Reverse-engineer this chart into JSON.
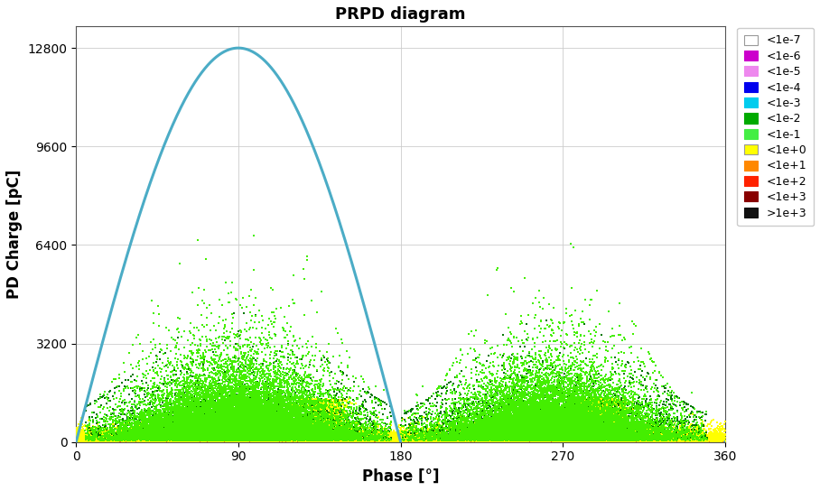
{
  "title": "PRPD diagram",
  "xlabel": "Phase [°]",
  "ylabel": "PD Charge [pC]",
  "xlim": [
    0,
    360
  ],
  "ylim": [
    0,
    13500
  ],
  "yticks": [
    0,
    3200,
    6400,
    9600,
    12800
  ],
  "xticks": [
    0,
    90,
    180,
    270,
    360
  ],
  "sine_color": "#4bacc6",
  "sine_amplitude": 12800,
  "background_color": "#ffffff",
  "plot_bg_color": "#ffffff",
  "legend_entries": [
    {
      "label": "<1e-7",
      "color": "#ffffff",
      "edgecolor": "#999999"
    },
    {
      "label": "<1e-6",
      "color": "#cc00cc",
      "edgecolor": "#cc00cc"
    },
    {
      "label": "<1e-5",
      "color": "#ee88ee",
      "edgecolor": "#ee88ee"
    },
    {
      "label": "<1e-4",
      "color": "#0000ee",
      "edgecolor": "#0000ee"
    },
    {
      "label": "<1e-3",
      "color": "#00ccee",
      "edgecolor": "#00ccee"
    },
    {
      "label": "<1e-2",
      "color": "#00aa00",
      "edgecolor": "#00aa00"
    },
    {
      "label": "<1e-1",
      "color": "#44ee44",
      "edgecolor": "#44ee44"
    },
    {
      "label": "<1e+0",
      "color": "#ffff00",
      "edgecolor": "#999999"
    },
    {
      "label": "<1e+1",
      "color": "#ff8800",
      "edgecolor": "#ff8800"
    },
    {
      "label": "<1e+2",
      "color": "#ff2200",
      "edgecolor": "#ff2200"
    },
    {
      "label": "<1e+3",
      "color": "#880000",
      "edgecolor": "#880000"
    },
    {
      "label": ">1e+3",
      "color": "#111111",
      "edgecolor": "#111111"
    }
  ]
}
